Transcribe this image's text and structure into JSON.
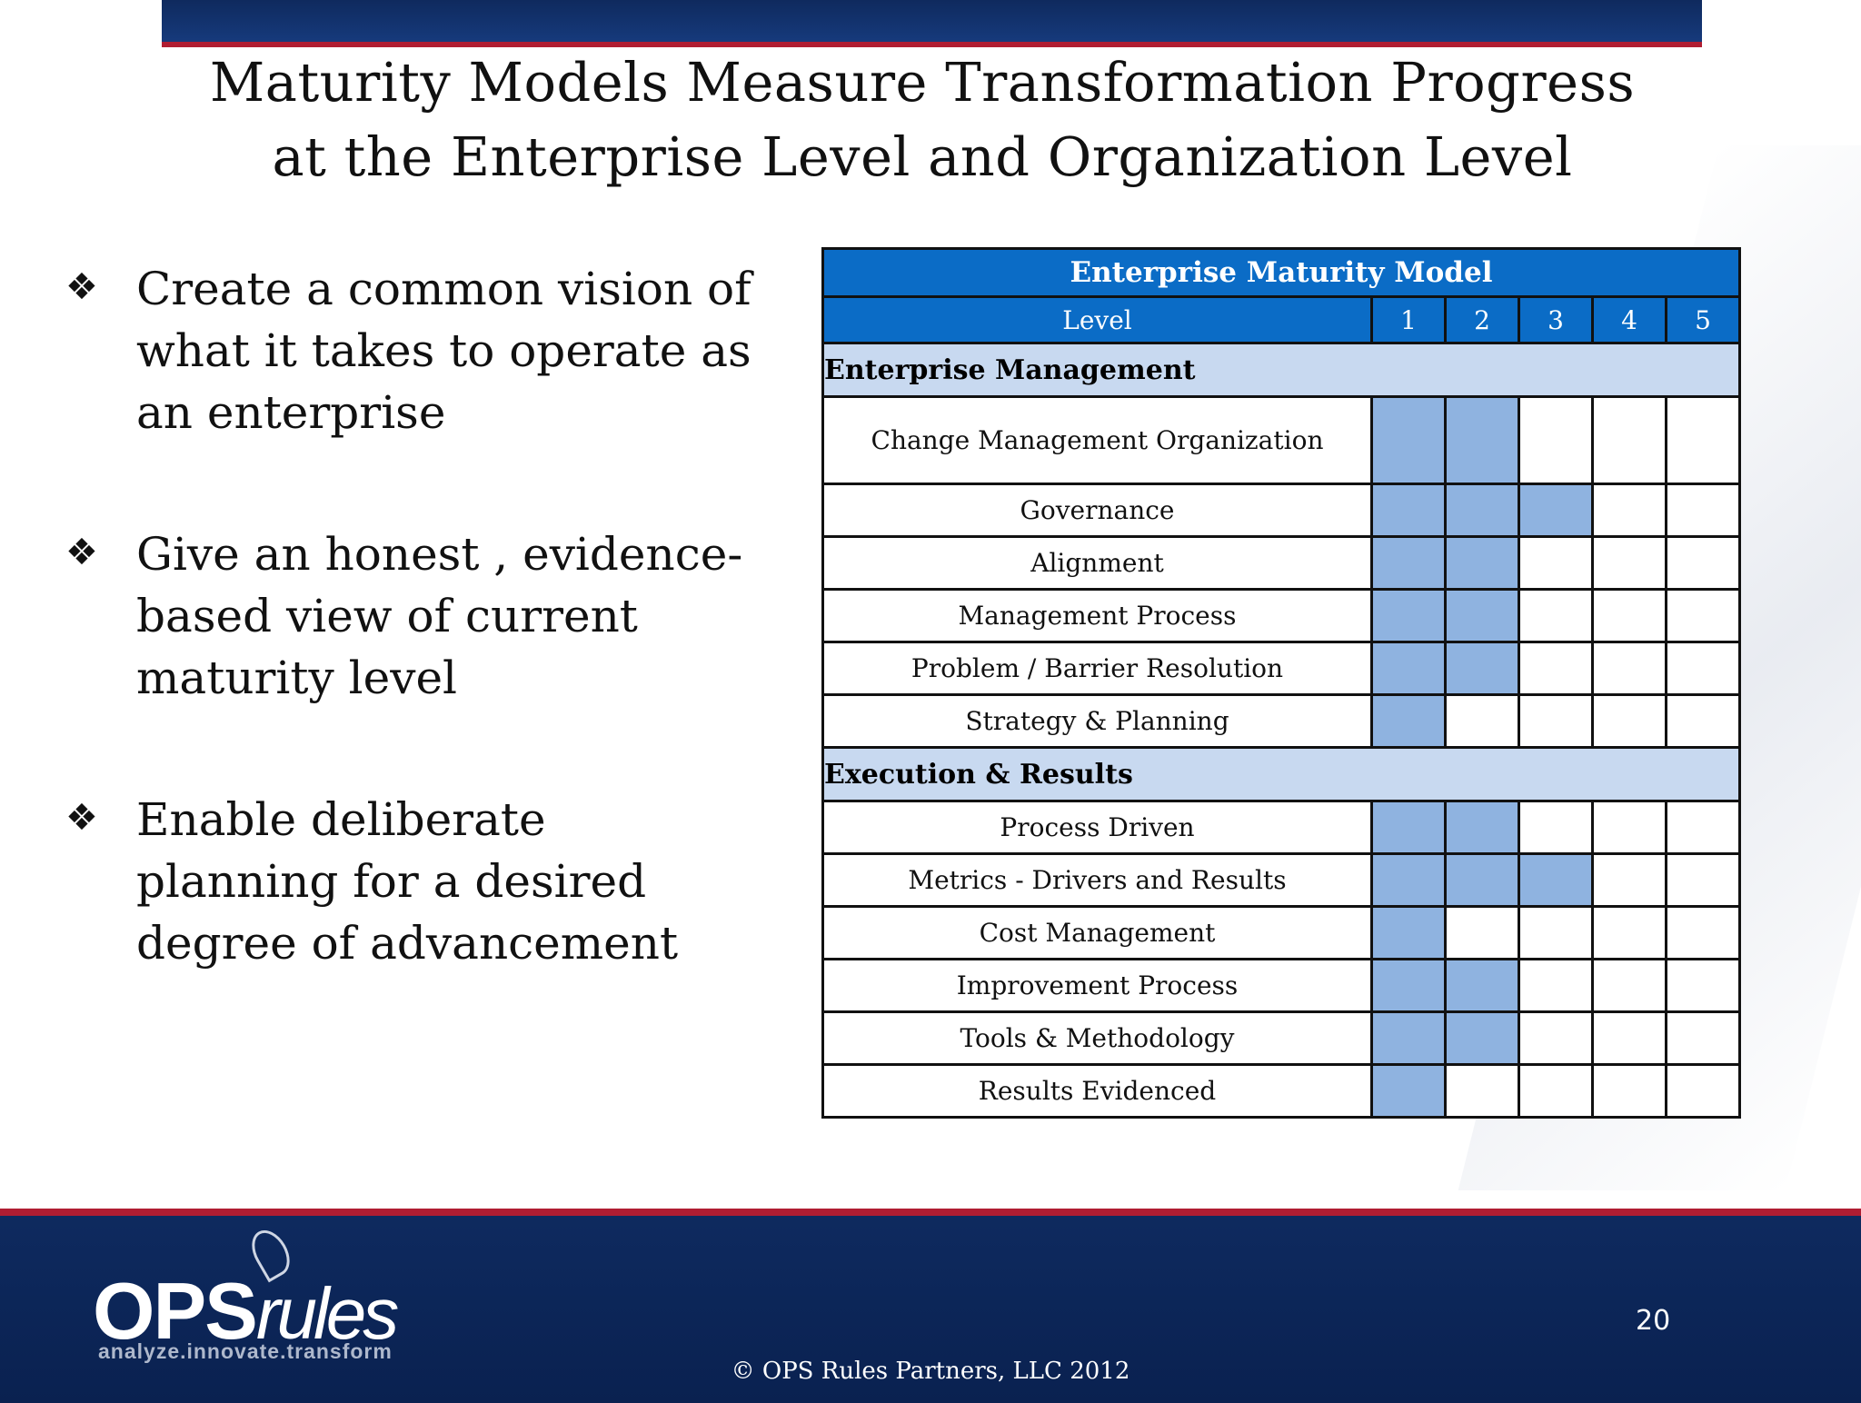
{
  "slide": {
    "title_line1": "Maturity Models Measure Transformation Progress",
    "title_line2": "at the Enterprise Level and Organization Level",
    "bullet_symbol": "❖",
    "bullets": [
      {
        "lines": [
          "Create a common vision of",
          "what it takes to operate as",
          "an enterprise"
        ]
      },
      {
        "lines": [
          "Give an honest , evidence-",
          "based view of current",
          "maturity level"
        ]
      },
      {
        "lines": [
          "Enable deliberate",
          "planning for a desired",
          "degree of advancement"
        ]
      }
    ]
  },
  "matrix": {
    "caption": "Enterprise Maturity Model",
    "level_label": "Level",
    "levels": [
      "1",
      "2",
      "3",
      "4",
      "5"
    ],
    "fill_color": "#8fb3e0",
    "sections": [
      {
        "name": "Enterprise Management",
        "rows": [
          {
            "label": "Change Management Organization",
            "level": 2
          },
          {
            "label": "Governance",
            "level": 3
          },
          {
            "label": "Alignment",
            "level": 2
          },
          {
            "label": "Management Process",
            "level": 2
          },
          {
            "label": "Problem / Barrier Resolution",
            "level": 2
          },
          {
            "label": "Strategy & Planning",
            "level": 1
          }
        ]
      },
      {
        "name": "Execution & Results",
        "rows": [
          {
            "label": "Process Driven",
            "level": 2
          },
          {
            "label": "Metrics - Drivers and Results",
            "level": 3
          },
          {
            "label": "Cost Management",
            "level": 1
          },
          {
            "label": "Improvement Process",
            "level": 2
          },
          {
            "label": "Tools & Methodology",
            "level": 2
          },
          {
            "label": "Results Evidenced",
            "level": 1
          }
        ]
      }
    ]
  },
  "footer": {
    "logo_ops": "OPS",
    "logo_rules": "rules",
    "tagline": "analyze.innovate.transform",
    "page_number": "20",
    "copyright": "© OPS Rules Partners, LLC 2012"
  }
}
